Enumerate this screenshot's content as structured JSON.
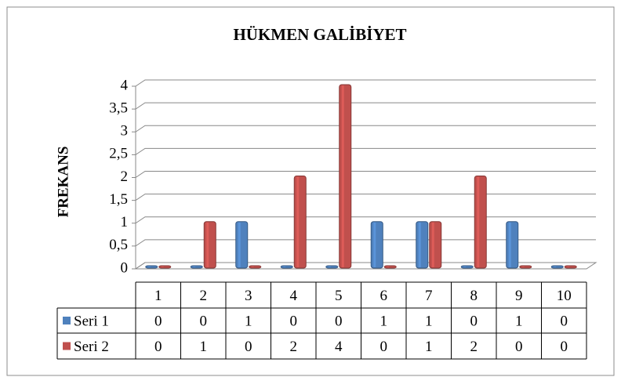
{
  "chart_data": {
    "type": "bar3d",
    "title": "HÜKMEN GALİBİYET",
    "y_label": "FREKANS",
    "categories": [
      "1",
      "2",
      "3",
      "4",
      "5",
      "6",
      "7",
      "8",
      "9",
      "10"
    ],
    "series": [
      {
        "name": "Seri 1",
        "color": "#4f81bd",
        "values": [
          0,
          0,
          1,
          0,
          0,
          1,
          1,
          0,
          1,
          0
        ]
      },
      {
        "name": "Seri 2",
        "color": "#c0504d",
        "values": [
          0,
          1,
          0,
          2,
          4,
          0,
          1,
          2,
          0,
          0
        ]
      }
    ],
    "ylim": [
      0,
      4
    ],
    "yticks": [
      0,
      {
        "value": 0.5,
        "label": "0,5"
      },
      1,
      {
        "value": 1.5,
        "label": "1,5"
      },
      2,
      {
        "value": 2.5,
        "label": "2,5"
      },
      3,
      {
        "value": 3.5,
        "label": "3,5"
      },
      4
    ],
    "grid": true,
    "data_table": true
  }
}
